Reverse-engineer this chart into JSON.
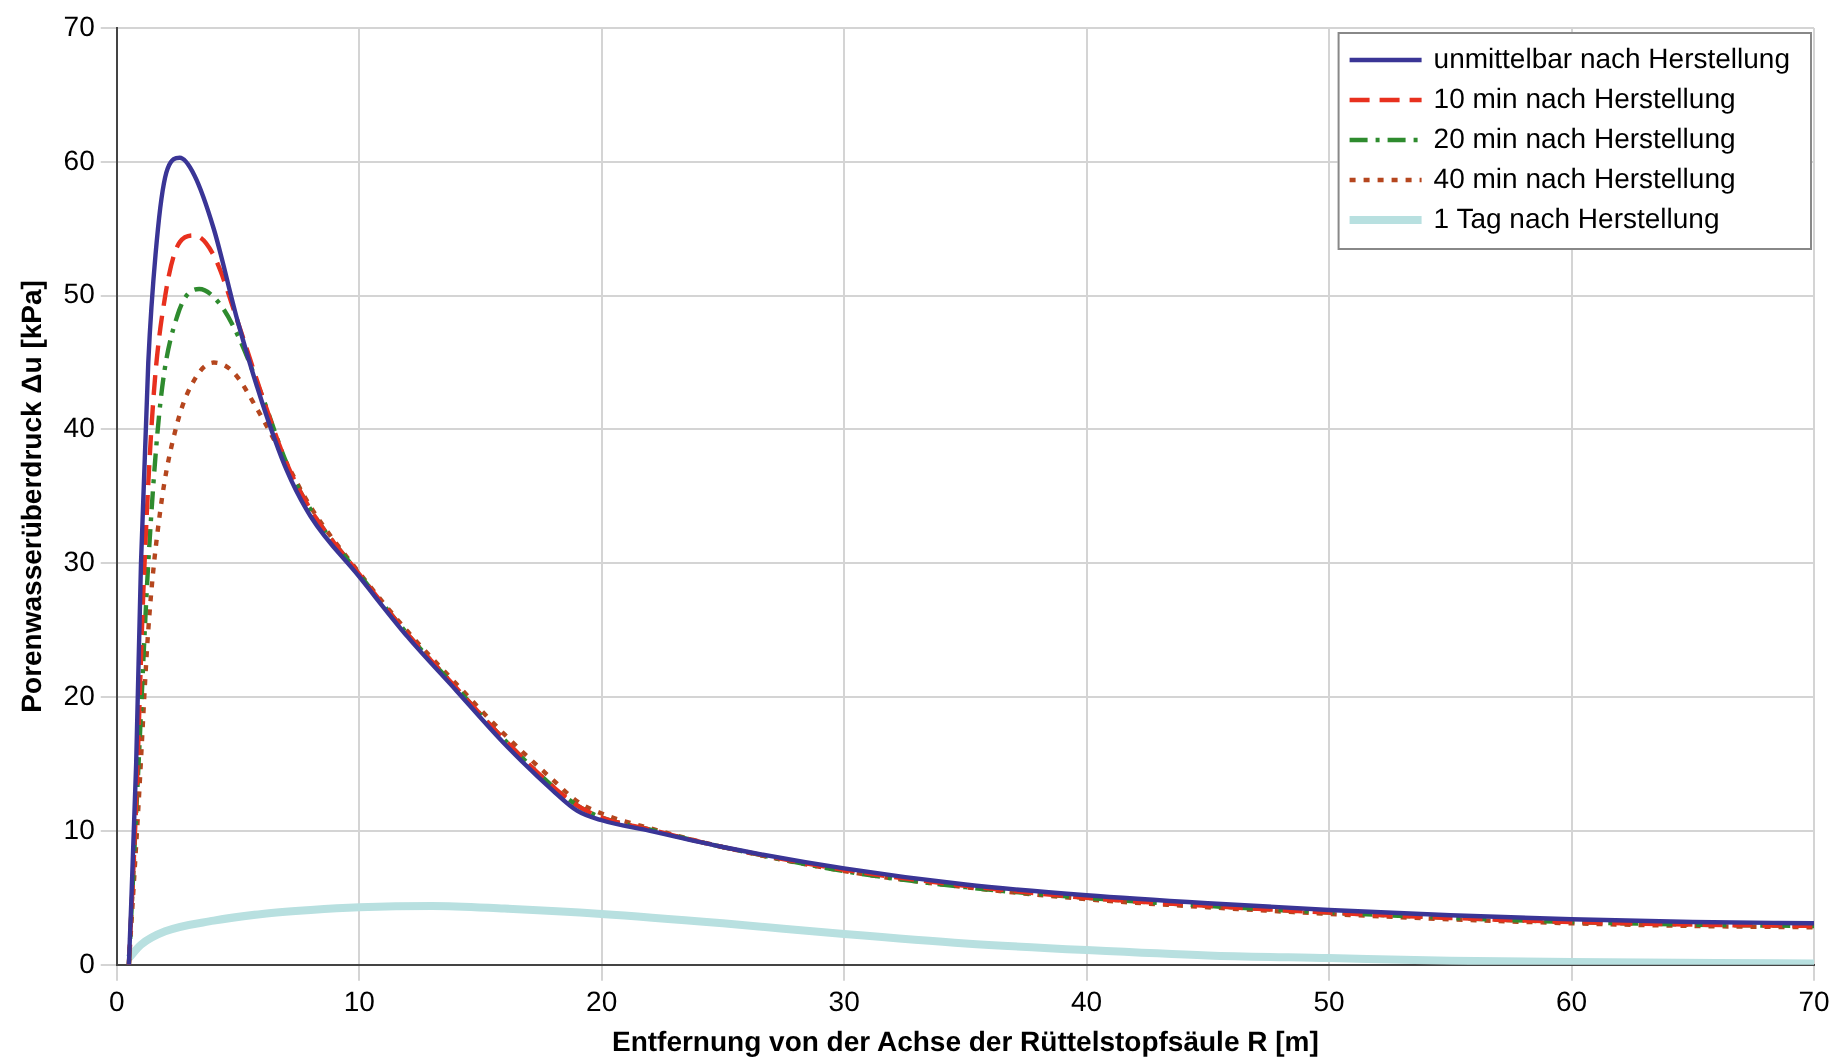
{
  "chart_data": {
    "type": "line",
    "xlabel": "Entfernung von der Achse der Rüttelstopfsäule R [m]",
    "ylabel": "Porenwasserüberdruck Δu [kPa]",
    "xlim": [
      0,
      70
    ],
    "xticks": [
      0,
      10,
      20,
      30,
      40,
      50,
      60,
      70
    ],
    "ylim": [
      0,
      70
    ],
    "yticks": [
      0,
      10,
      20,
      30,
      40,
      50,
      60,
      70
    ],
    "grid": true,
    "legend": "top right",
    "marker": "none",
    "series": [
      {
        "name": "unmittelbar nach Herstellung",
        "color": "#3a3596",
        "line_style": "solid",
        "x": [
          0.5,
          0.8,
          1,
          1.3,
          1.7,
          2.1,
          2.6,
          3.2,
          4,
          5,
          6,
          7,
          8,
          10,
          12,
          14,
          16,
          18,
          19,
          20,
          22,
          25,
          30,
          35,
          40,
          45,
          50,
          55,
          60,
          65,
          70
        ],
        "values": [
          0,
          15,
          30,
          45,
          55,
          59.5,
          60.3,
          59,
          55,
          48,
          42,
          37,
          33.5,
          29,
          24.5,
          20.5,
          16.5,
          13,
          11.5,
          10.8,
          10,
          8.8,
          7.2,
          6,
          5.2,
          4.6,
          4.1,
          3.7,
          3.4,
          3.2,
          3.1
        ]
      },
      {
        "name": "10 min nach Herstellung",
        "color": "#e8301e",
        "line_style": "dashed",
        "x": [
          0.5,
          0.8,
          1.1,
          1.5,
          2,
          2.6,
          3.2,
          4,
          5,
          6,
          7,
          8,
          10,
          12,
          14,
          16,
          18,
          19,
          20,
          22,
          25,
          30,
          35,
          40,
          45,
          50,
          55,
          60,
          65,
          70
        ],
        "values": [
          0,
          12,
          28,
          42,
          50,
          54,
          54.5,
          53,
          48,
          42.5,
          37.5,
          34,
          29.2,
          24.7,
          20.7,
          16.8,
          13.3,
          11.9,
          11,
          10.1,
          8.8,
          7.1,
          5.9,
          5,
          4.4,
          3.9,
          3.5,
          3.2,
          3,
          2.9
        ]
      },
      {
        "name": "20 min nach Herstellung",
        "color": "#2e8b2e",
        "line_style": "dashdot",
        "x": [
          0.5,
          0.9,
          1.3,
          1.8,
          2.5,
          3.4,
          4.2,
          5,
          6,
          7,
          8,
          10,
          12,
          14,
          16,
          18,
          19,
          20,
          22,
          25,
          30,
          35,
          40,
          45,
          50,
          55,
          60,
          65,
          70
        ],
        "values": [
          0,
          15,
          30,
          42,
          48.5,
          50.5,
          49.5,
          47,
          42.5,
          37.5,
          34,
          29.2,
          24.7,
          20.7,
          16.8,
          13.3,
          11.9,
          11,
          10.1,
          8.8,
          7,
          5.8,
          5,
          4.4,
          3.9,
          3.5,
          3.2,
          3,
          2.9
        ]
      },
      {
        "name": "40 min nach Herstellung",
        "color": "#b5461e",
        "line_style": "dotted",
        "x": [
          0.5,
          0.9,
          1.3,
          1.8,
          2.5,
          3.3,
          4,
          4.8,
          5.8,
          7,
          8,
          10,
          12,
          14,
          16,
          18,
          19,
          20,
          22,
          25,
          30,
          35,
          40,
          45,
          50,
          55,
          60,
          65,
          70
        ],
        "values": [
          0,
          12,
          25,
          34,
          40.5,
          44,
          45,
          44.3,
          41.5,
          37.5,
          34.2,
          29.3,
          24.9,
          21,
          17.2,
          13.8,
          12.2,
          11.3,
          10.2,
          8.8,
          7,
          5.8,
          4.9,
          4.3,
          3.8,
          3.4,
          3.1,
          2.9,
          2.8
        ]
      },
      {
        "name": "1 Tag nach Herstellung",
        "color": "#b8e0e0",
        "line_style": "solid",
        "x": [
          0.5,
          1,
          2,
          4,
          6,
          8,
          10,
          13,
          16,
          20,
          25,
          30,
          35,
          40,
          45,
          50,
          55,
          60,
          70
        ],
        "values": [
          0.5,
          1.5,
          2.5,
          3.3,
          3.8,
          4.1,
          4.3,
          4.4,
          4.2,
          3.8,
          3.1,
          2.3,
          1.6,
          1.1,
          0.7,
          0.5,
          0.3,
          0.2,
          0.1
        ]
      }
    ]
  }
}
